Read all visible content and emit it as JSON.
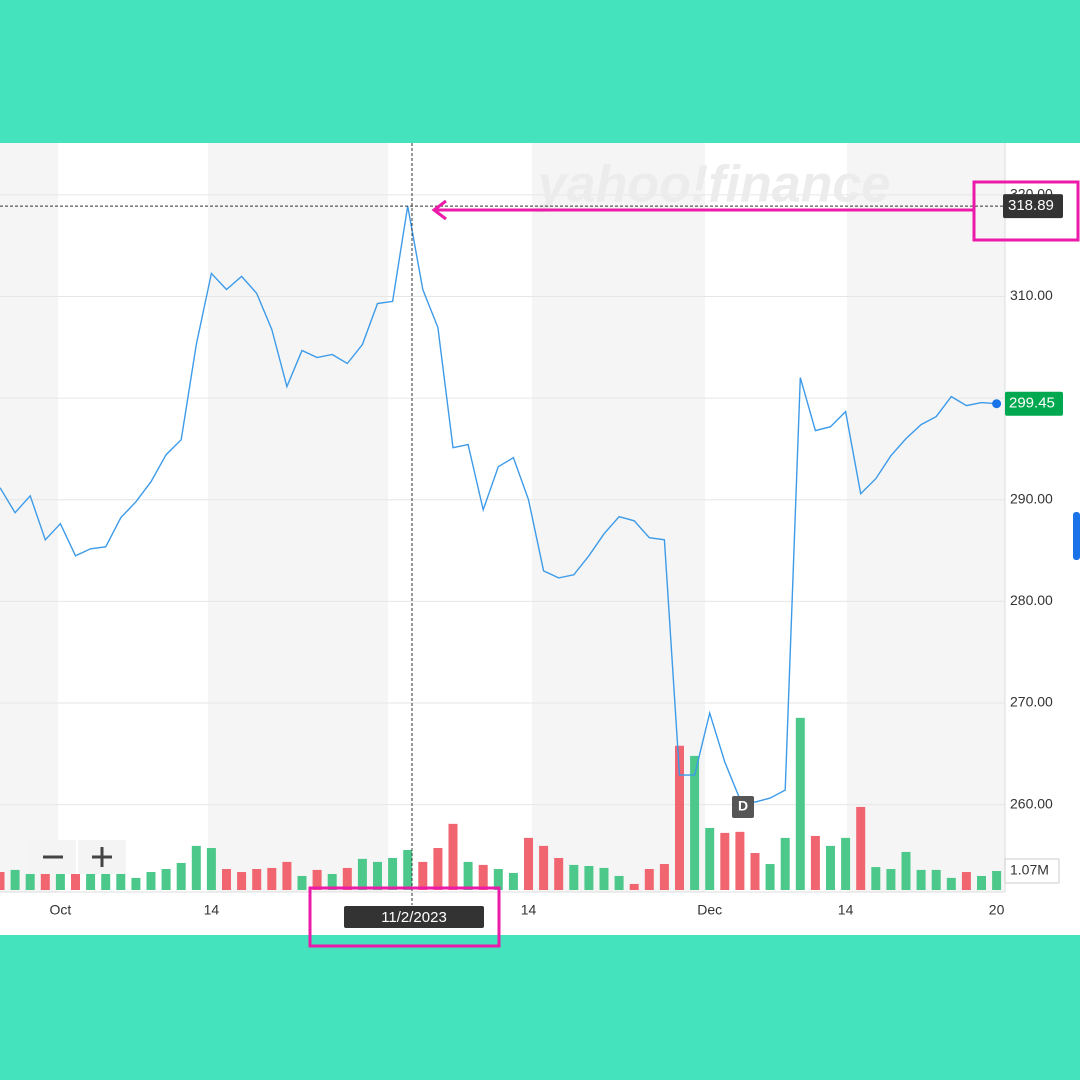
{
  "chart_data": {
    "type": "line",
    "watermark": "yahoo!finance",
    "categories": [
      null,
      null,
      null,
      null,
      "Oct",
      null,
      null,
      null,
      null,
      null,
      null,
      null,
      null,
      null,
      "14",
      null,
      null,
      null,
      null,
      null,
      null,
      null,
      null,
      null,
      null,
      null,
      null,
      null,
      null,
      null,
      null,
      null,
      null,
      null,
      null,
      "14",
      null,
      null,
      null,
      null,
      null,
      null,
      null,
      null,
      null,
      null,
      null,
      "Dec",
      null,
      null,
      null,
      null,
      null,
      null,
      null,
      null,
      "14",
      null,
      null,
      null,
      null,
      null,
      null,
      null,
      null,
      null,
      "20"
    ],
    "series": [
      {
        "color": "#3d9be9",
        "values": [
          291.18,
          288.72,
          290.39,
          286.06,
          287.64,
          284.48,
          285.17,
          285.37,
          288.23,
          289.8,
          291.77,
          294.43,
          295.91,
          305.27,
          312.27,
          310.69,
          311.97,
          310.3,
          306.75,
          301.13,
          304.68,
          303.99,
          304.29,
          303.4,
          305.27,
          309.31,
          309.51,
          318.89,
          310.69,
          306.95,
          295.12,
          295.42,
          289.01,
          293.25,
          294.14,
          290,
          283,
          282.31,
          282.61,
          284.48,
          286.65,
          288.33,
          287.93,
          286.26,
          286.06,
          262.91,
          262.91,
          269.01,
          264.19,
          260.54,
          260.25,
          260.64,
          261.43,
          302.02,
          296.8,
          297.19,
          298.67,
          290.59,
          292.07,
          294.33,
          296.01,
          297.39,
          298.18,
          300.15,
          299.26,
          299.56,
          299.45
        ]
      }
    ],
    "volume": {
      "values": [
        1.01,
        1.13,
        0.9,
        1.01,
        0.9,
        0.9,
        1.01,
        1.01,
        1.01,
        0.68,
        1.01,
        1.18,
        1.52,
        2.48,
        2.36,
        1.18,
        1.01,
        1.18,
        1.24,
        1.58,
        0.79,
        1.13,
        0.9,
        1.24,
        1.75,
        1.58,
        1.8,
        2.25,
        1.58,
        2.36,
        3.72,
        1.58,
        1.41,
        1.18,
        0.96,
        2.93,
        2.48,
        1.8,
        1.41,
        1.35,
        1.24,
        0.79,
        0.34,
        1.18,
        1.46,
        8.11,
        7.54,
        3.49,
        3.21,
        3.27,
        2.08,
        1.46,
        2.93,
        9.68,
        3.04,
        2.48,
        2.93,
        4.67,
        1.29,
        1.18,
        2.14,
        1.13,
        1.13,
        0.68,
        1.01,
        0.79,
        1.07
      ],
      "colors": [
        "#f0656f",
        "#4cc98a",
        "#4cc98a",
        "#f0656f",
        "#4cc98a",
        "#f0656f",
        "#4cc98a",
        "#4cc98a",
        "#4cc98a",
        "#4cc98a",
        "#4cc98a",
        "#4cc98a",
        "#4cc98a",
        "#4cc98a",
        "#4cc98a",
        "#f0656f",
        "#f0656f",
        "#f0656f",
        "#f0656f",
        "#f0656f",
        "#4cc98a",
        "#f0656f",
        "#4cc98a",
        "#f0656f",
        "#4cc98a",
        "#4cc98a",
        "#4cc98a",
        "#4cc98a",
        "#f0656f",
        "#f0656f",
        "#f0656f",
        "#4cc98a",
        "#f0656f",
        "#4cc98a",
        "#4cc98a",
        "#f0656f",
        "#f0656f",
        "#f0656f",
        "#4cc98a",
        "#4cc98a",
        "#4cc98a",
        "#4cc98a",
        "#f0656f",
        "#f0656f",
        "#f0656f",
        "#f0656f",
        "#4cc98a",
        "#4cc98a",
        "#f0656f",
        "#f0656f",
        "#f0656f",
        "#4cc98a",
        "#4cc98a",
        "#4cc98a",
        "#f0656f",
        "#4cc98a",
        "#4cc98a",
        "#f0656f",
        "#4cc98a",
        "#4cc98a",
        "#4cc98a",
        "#4cc98a",
        "#4cc98a",
        "#4cc98a",
        "#f0656f",
        "#4cc98a",
        "#4cc98a"
      ],
      "ylim": [
        0,
        42
      ],
      "last_label": "1.07M"
    },
    "ylim": [
      251.6,
      325.1
    ],
    "yticks": [
      {
        "value": 260,
        "label": "260.00"
      },
      {
        "value": 270,
        "label": "270.00"
      },
      {
        "value": 280,
        "label": "280.00"
      },
      {
        "value": 290,
        "label": "290.00"
      },
      {
        "value": 300,
        "label": "300.00"
      },
      {
        "value": 310,
        "label": "310.00"
      },
      {
        "value": 320,
        "label": "320.00"
      }
    ],
    "grid": true,
    "crosshair_date": "11/2/2023",
    "crosshair_price": 318.89,
    "last_price": 299.45,
    "dividend_marker": "D"
  }
}
